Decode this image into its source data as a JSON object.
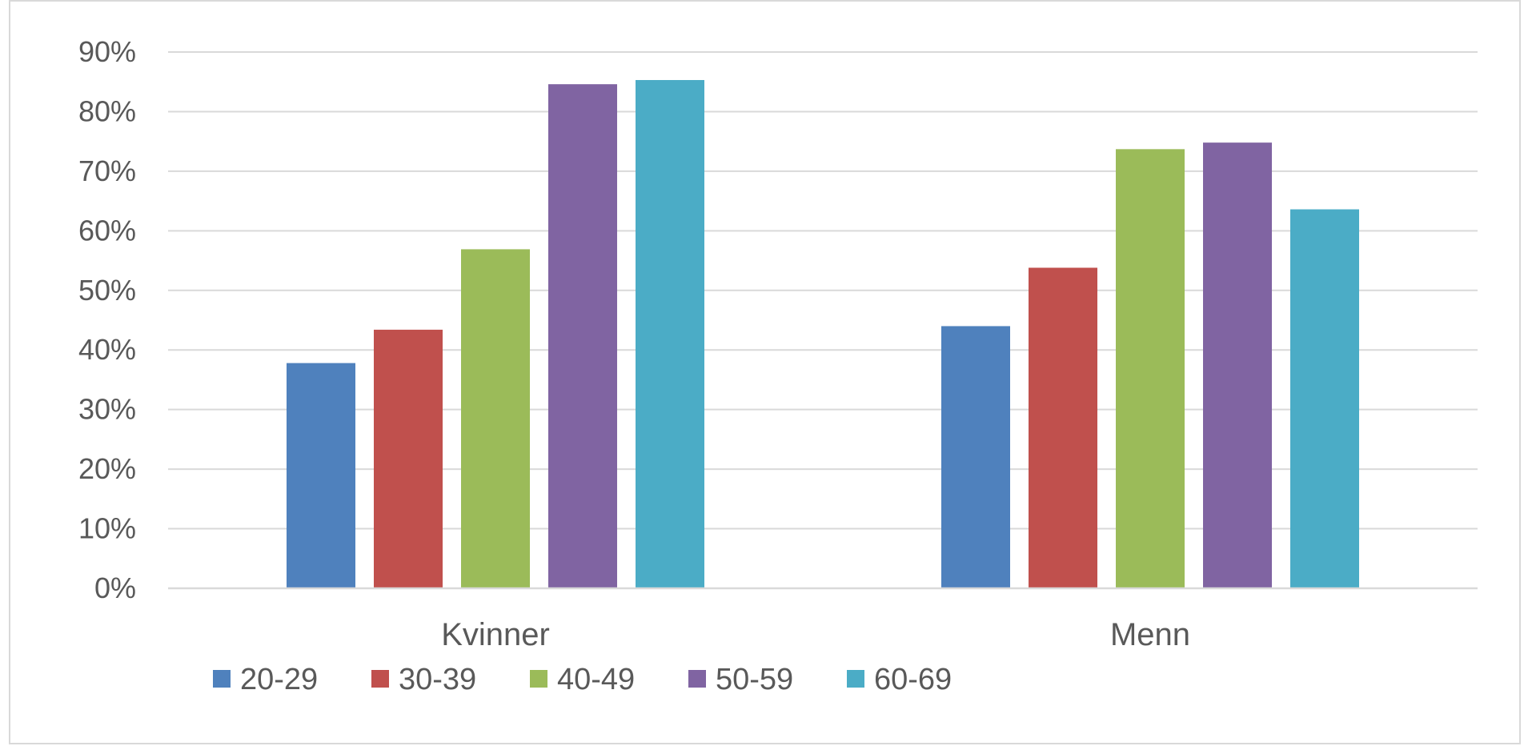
{
  "chart_data": {
    "type": "bar",
    "title": "",
    "xlabel": "",
    "ylabel": "",
    "ylim": [
      0,
      90
    ],
    "y_tick_step": 10,
    "y_tick_format": "percent",
    "y_ticks": [
      "0%",
      "10%",
      "20%",
      "30%",
      "40%",
      "50%",
      "60%",
      "70%",
      "80%",
      "90%"
    ],
    "grid": true,
    "legend_position": "bottom-left",
    "categories": [
      "Kvinner",
      "Menn"
    ],
    "series": [
      {
        "name": "20-29",
        "color": "#4f81bd",
        "values": [
          37.8,
          44.0
        ]
      },
      {
        "name": "30-39",
        "color": "#c0504d",
        "values": [
          43.4,
          53.8
        ]
      },
      {
        "name": "40-49",
        "color": "#9bbb59",
        "values": [
          56.9,
          73.7
        ]
      },
      {
        "name": "50-59",
        "color": "#8064a2",
        "values": [
          84.6,
          74.8
        ]
      },
      {
        "name": "60-69",
        "color": "#4bacc6",
        "values": [
          85.3,
          63.6
        ]
      }
    ]
  }
}
